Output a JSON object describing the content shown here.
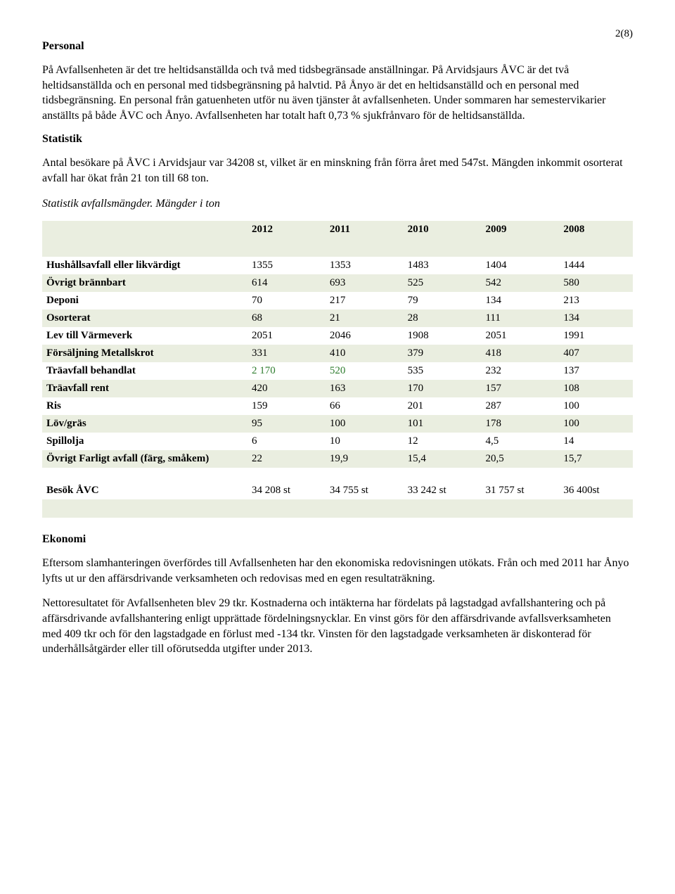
{
  "page_number": "2(8)",
  "headings": {
    "personal": "Personal",
    "statistik": "Statistik",
    "ekonomi": "Ekonomi"
  },
  "paragraphs": {
    "p1": "På Avfallsenheten är det tre heltidsanställda och två med tidsbegränsade anställningar. På Arvidsjaurs ÅVC är det två heltidsanställda och en personal med tidsbegränsning på halvtid. På Ånyo är det en heltidsanställd och en personal med tidsbegränsning. En personal från gatuenheten utför nu även tjänster åt avfallsenheten. Under sommaren har semestervikarier anställts på både ÅVC och Ånyo. Avfallsenheten har totalt haft 0,73 % sjukfrånvaro för de heltidsanställda.",
    "p2": "Antal besökare på ÅVC i Arvidsjaur var 34208 st, vilket är en minskning från förra året med 547st. Mängden inkommit osorterat avfall har ökat från 21 ton till 68 ton.",
    "p3": "Eftersom slamhanteringen överfördes till Avfallsenheten har den ekonomiska redovisningen utökats. Från och med 2011 har Ånyo lyfts ut ur den affärsdrivande verksamheten och redovisas med en egen resultaträkning.",
    "p4": "Nettoresultatet för Avfallsenheten blev 29 tkr. Kostnaderna och intäkterna har fördelats på lagstadgad avfallshantering och på affärsdrivande avfallshantering enligt upprättade fördelningsnycklar. En vinst görs för den affärsdrivande avfallsverksamheten med 409 tkr och för den lagstadgade en förlust med -134 tkr. Vinsten för den lagstadgade verksamheten är diskonterad för underhållsåtgärder eller till oförutsedda utgifter under 2013."
  },
  "table_caption": "Statistik avfallsmängder. Mängder i ton",
  "table": {
    "years": [
      "2012",
      "2011",
      "2010",
      "2009",
      "2008"
    ],
    "rows": [
      {
        "label": "Hushållsavfall eller likvärdigt",
        "v": [
          "1355",
          "1353",
          "1483",
          "1404",
          "1444"
        ],
        "shaded": false
      },
      {
        "label": "Övrigt brännbart",
        "v": [
          "614",
          "693",
          "525",
          "542",
          "580"
        ],
        "shaded": true
      },
      {
        "label": "Deponi",
        "v": [
          "70",
          "217",
          "79",
          "134",
          "213"
        ],
        "shaded": false
      },
      {
        "label": "Osorterat",
        "v": [
          "68",
          "21",
          "28",
          "111",
          "134"
        ],
        "shaded": true
      },
      {
        "label": "Lev till Värmeverk",
        "v": [
          "2051",
          "2046",
          "1908",
          "2051",
          "1991"
        ],
        "shaded": false
      },
      {
        "label": "Försäljning Metallskrot",
        "v": [
          "331",
          "410",
          "379",
          "418",
          "407"
        ],
        "shaded": true
      },
      {
        "label": "Träavfall behandlat",
        "v": [
          "2 170",
          "520",
          "535",
          "232",
          "137"
        ],
        "shaded": false,
        "green_cols": [
          0,
          1
        ]
      },
      {
        "label": "Träavfall rent",
        "v": [
          "420",
          "163",
          "170",
          "157",
          "108"
        ],
        "shaded": true
      },
      {
        "label": "Ris",
        "v": [
          "159",
          "66",
          "201",
          "287",
          "100"
        ],
        "shaded": false
      },
      {
        "label": "Löv/gräs",
        "v": [
          "95",
          "100",
          "101",
          "178",
          "100"
        ],
        "shaded": true
      },
      {
        "label": "Spillolja",
        "v": [
          "6",
          "10",
          "12",
          "4,5",
          "14"
        ],
        "shaded": false
      },
      {
        "label": "Övrigt Farligt avfall (färg, småkem)",
        "v": [
          "22",
          "19,9",
          "15,4",
          "20,5",
          "15,7"
        ],
        "shaded": true
      }
    ],
    "footer": {
      "label": "Besök ÅVC",
      "v": [
        "34 208 st",
        "34 755 st",
        "33 242 st",
        "31 757 st",
        "36 400st"
      ]
    }
  },
  "colors": {
    "shaded_bg": "#eaeee0",
    "green_text": "#2f7d2f"
  }
}
